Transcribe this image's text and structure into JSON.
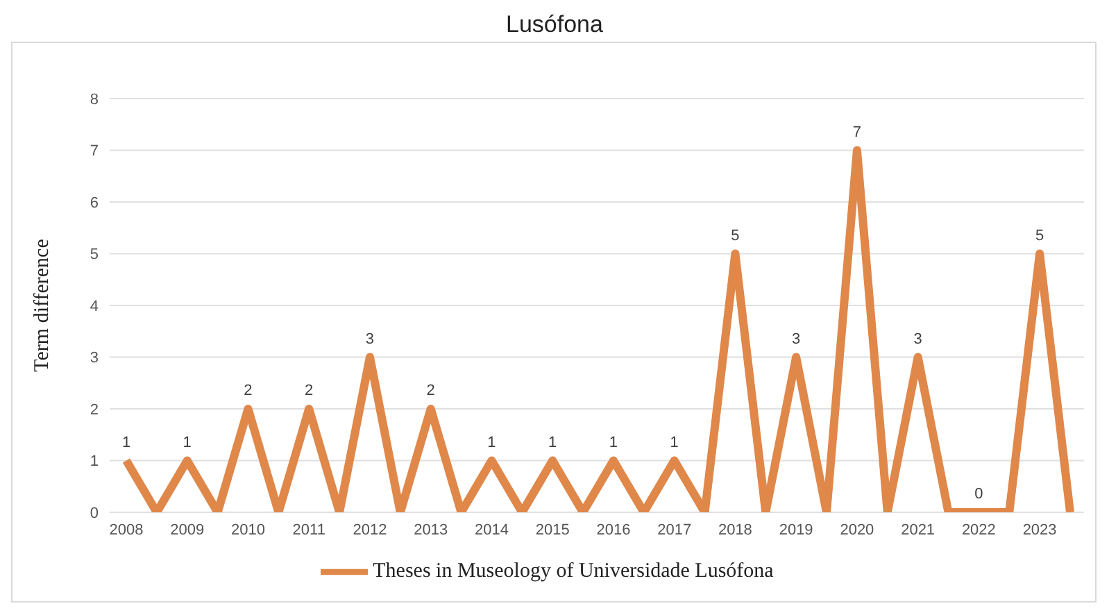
{
  "chart_data": {
    "type": "line",
    "title": "Lusófona",
    "ylabel": "Term difference",
    "categories": [
      "2008",
      null,
      "2009",
      null,
      "2010",
      null,
      "2011",
      null,
      "2012",
      null,
      "2013",
      null,
      "2014",
      null,
      "2015",
      null,
      "2016",
      null,
      "2017",
      null,
      "2018",
      null,
      "2019",
      null,
      "2020",
      null,
      "2021",
      null,
      "2022",
      null,
      "2023",
      null
    ],
    "series": [
      {
        "name": "Theses in Museology of Universidade Lusófona",
        "color": "#e0874a",
        "values": [
          1,
          0,
          1,
          0,
          2,
          0,
          2,
          0,
          3,
          0,
          2,
          0,
          1,
          0,
          1,
          0,
          1,
          0,
          1,
          0,
          5,
          0,
          3,
          0,
          7,
          0,
          3,
          0,
          0,
          0,
          5,
          0
        ],
        "value_labels": [
          "1",
          null,
          "1",
          null,
          "2",
          null,
          "2",
          null,
          "3",
          null,
          "2",
          null,
          "1",
          null,
          "1",
          null,
          "1",
          null,
          "1",
          null,
          "5",
          null,
          "3",
          null,
          "7",
          null,
          "3",
          null,
          "0",
          null,
          "5",
          null
        ]
      }
    ],
    "ylim": [
      0,
      8
    ],
    "yticks": [
      0,
      1,
      2,
      3,
      4,
      5,
      6,
      7,
      8
    ],
    "grid": "y",
    "legend": "bottom",
    "marker": "none",
    "line_style": "solid"
  }
}
